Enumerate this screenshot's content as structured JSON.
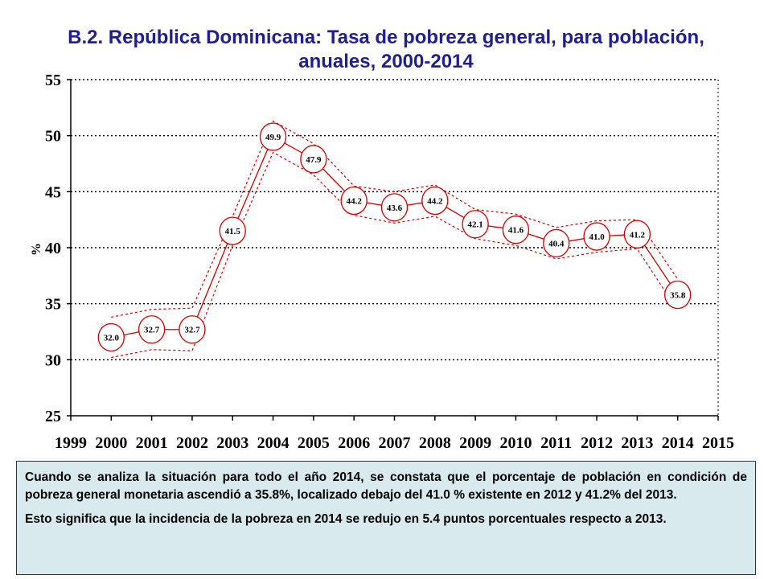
{
  "title_line1": "B.2. República Dominicana: Tasa de pobreza general, para población,",
  "title_line2": "anuales, 2000-2014",
  "chart_data": {
    "type": "line",
    "ylabel": "%",
    "xlabel": "",
    "ylim": [
      25,
      55
    ],
    "xlim": [
      1999,
      2015
    ],
    "yticks": [
      25,
      30,
      35,
      40,
      45,
      50,
      55
    ],
    "xticks": [
      1999,
      2000,
      2001,
      2002,
      2003,
      2004,
      2005,
      2006,
      2007,
      2008,
      2009,
      2010,
      2011,
      2012,
      2013,
      2014,
      2015
    ],
    "grid": "horizontal dotted",
    "x": [
      2000,
      2001,
      2002,
      2003,
      2004,
      2005,
      2006,
      2007,
      2008,
      2009,
      2010,
      2011,
      2012,
      2013,
      2014
    ],
    "series": [
      {
        "values": [
          32.0,
          32.7,
          32.7,
          41.5,
          49.9,
          47.9,
          44.2,
          43.6,
          44.2,
          42.1,
          41.6,
          40.4,
          41.0,
          41.2,
          35.8
        ]
      },
      {
        "values": [
          33.8,
          34.5,
          34.6,
          42.8,
          51.3,
          49.3,
          45.5,
          45.0,
          45.6,
          43.4,
          43.0,
          41.8,
          42.4,
          42.5,
          37.2
        ]
      },
      {
        "values": [
          30.2,
          30.9,
          30.8,
          40.2,
          48.5,
          46.5,
          42.9,
          42.2,
          42.8,
          40.8,
          40.2,
          39.0,
          39.6,
          39.9,
          34.4
        ]
      }
    ],
    "labels": [
      "32.0",
      "32.7",
      "32.7",
      "41.5",
      "49.9",
      "47.9",
      "44.2",
      "43.6",
      "44.2",
      "42.1",
      "41.6",
      "40.4",
      "41.0",
      "41.2",
      "35.8"
    ],
    "colors": {
      "line": "#cc0000",
      "grid": "#000000",
      "title": "#1f1f8f"
    }
  },
  "note": {
    "p1": "Cuando se analiza la situación para todo el año 2014, se constata que el porcentaje de población en condición de pobreza general monetaria ascendió a 35.8%, localizado debajo del 41.0 % existente en 2012 y 41.2% del 2013.",
    "p2": "Esto significa que la incidencia de la pobreza en 2014 se redujo en 5.4 puntos porcentuales respecto a 2013."
  }
}
